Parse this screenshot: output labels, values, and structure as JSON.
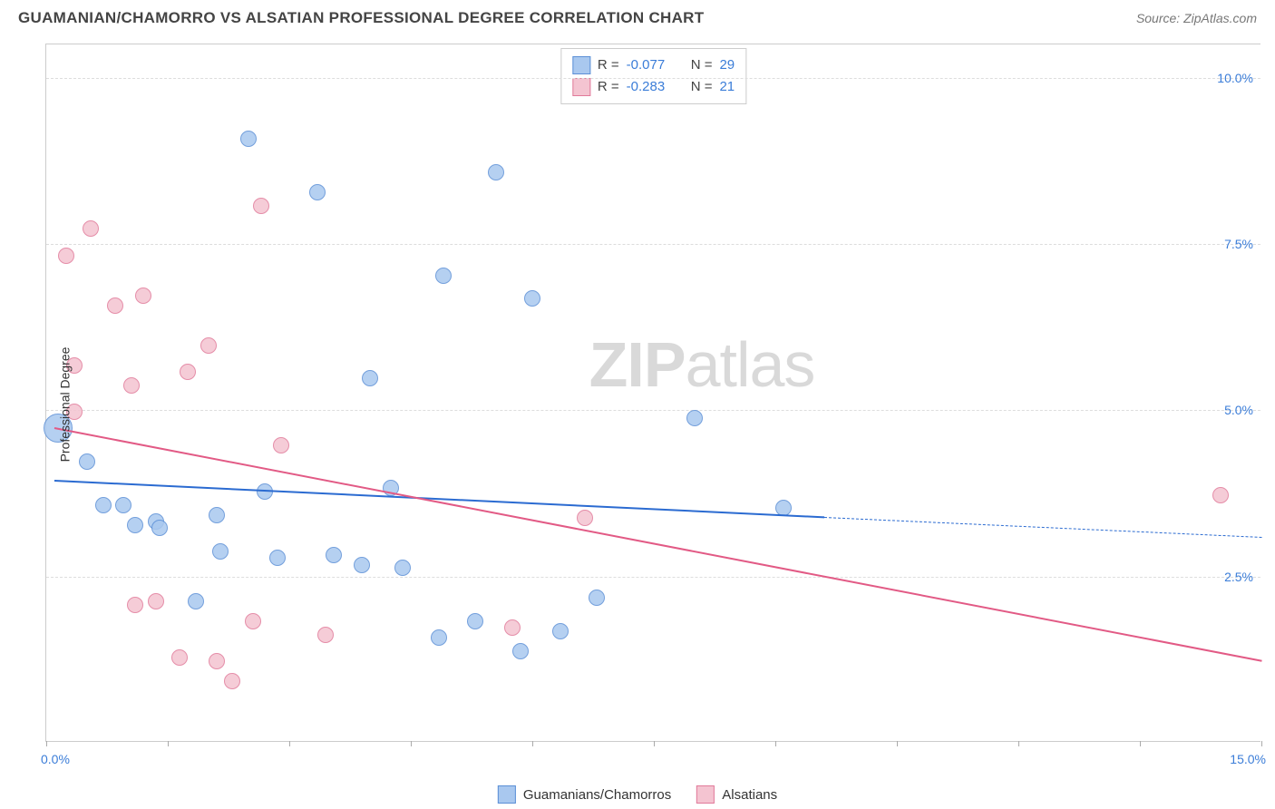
{
  "header": {
    "title": "GUAMANIAN/CHAMORRO VS ALSATIAN PROFESSIONAL DEGREE CORRELATION CHART",
    "source": "Source: ZipAtlas.com"
  },
  "chart": {
    "type": "scatter",
    "ylabel": "Professional Degree",
    "xlim": [
      0,
      15
    ],
    "ylim": [
      0,
      10.5
    ],
    "xtick_step": 1.5,
    "ytick_step": 2.5,
    "xaxis_labels": {
      "left": "0.0%",
      "right": "15.0%"
    },
    "ytick_labels": [
      "2.5%",
      "5.0%",
      "7.5%",
      "10.0%"
    ],
    "ytick_values": [
      2.5,
      5.0,
      7.5,
      10.0
    ],
    "grid_color": "#dddddd",
    "axis_color": "#cccccc",
    "label_color": "#3b7dd8",
    "background_color": "#ffffff",
    "watermark": {
      "bold": "ZIP",
      "rest": "atlas"
    },
    "series": [
      {
        "name": "Guamanians/Chamorros",
        "fill": "#a9c8ef",
        "stroke": "#5b8fd6",
        "marker_radius": 9,
        "trend": {
          "x1": 0.1,
          "y1": 3.95,
          "x2": 9.6,
          "y2": 3.4,
          "dash_from_x": 9.6,
          "dash_to_x": 15.0,
          "dash_to_y": 3.1,
          "color": "#2b6bd1",
          "width": 2.5
        },
        "stats": {
          "R_label": "R =",
          "R": "-0.077",
          "N_label": "N =",
          "N": "29"
        },
        "points": [
          {
            "x": 0.15,
            "y": 4.7,
            "r": 16
          },
          {
            "x": 0.5,
            "y": 4.2
          },
          {
            "x": 0.7,
            "y": 3.55
          },
          {
            "x": 0.95,
            "y": 3.55
          },
          {
            "x": 1.1,
            "y": 3.25
          },
          {
            "x": 1.35,
            "y": 3.3
          },
          {
            "x": 1.4,
            "y": 3.2
          },
          {
            "x": 1.85,
            "y": 2.1
          },
          {
            "x": 2.1,
            "y": 3.4
          },
          {
            "x": 2.15,
            "y": 2.85
          },
          {
            "x": 2.5,
            "y": 9.05
          },
          {
            "x": 2.7,
            "y": 3.75
          },
          {
            "x": 2.85,
            "y": 2.75
          },
          {
            "x": 3.35,
            "y": 8.25
          },
          {
            "x": 3.55,
            "y": 2.8
          },
          {
            "x": 3.9,
            "y": 2.65
          },
          {
            "x": 4.0,
            "y": 5.45
          },
          {
            "x": 4.25,
            "y": 3.8
          },
          {
            "x": 4.4,
            "y": 2.6
          },
          {
            "x": 4.85,
            "y": 1.55
          },
          {
            "x": 4.9,
            "y": 7.0
          },
          {
            "x": 5.3,
            "y": 1.8
          },
          {
            "x": 5.55,
            "y": 8.55
          },
          {
            "x": 5.85,
            "y": 1.35
          },
          {
            "x": 6.0,
            "y": 6.65
          },
          {
            "x": 6.35,
            "y": 1.65
          },
          {
            "x": 6.8,
            "y": 2.15
          },
          {
            "x": 8.0,
            "y": 4.85
          },
          {
            "x": 9.1,
            "y": 3.5
          }
        ]
      },
      {
        "name": "Alsatians",
        "fill": "#f4c4d1",
        "stroke": "#e17a9a",
        "marker_radius": 9,
        "trend": {
          "x1": 0.1,
          "y1": 4.75,
          "x2": 15.0,
          "y2": 1.25,
          "color": "#e25a85",
          "width": 2.5
        },
        "stats": {
          "R_label": "R =",
          "R": "-0.283",
          "N_label": "N =",
          "N": "21"
        },
        "points": [
          {
            "x": 0.25,
            "y": 7.3
          },
          {
            "x": 0.35,
            "y": 5.65
          },
          {
            "x": 0.35,
            "y": 4.95
          },
          {
            "x": 0.55,
            "y": 7.7
          },
          {
            "x": 0.85,
            "y": 6.55
          },
          {
            "x": 1.05,
            "y": 5.35
          },
          {
            "x": 1.1,
            "y": 2.05
          },
          {
            "x": 1.2,
            "y": 6.7
          },
          {
            "x": 1.35,
            "y": 2.1
          },
          {
            "x": 1.65,
            "y": 1.25
          },
          {
            "x": 1.75,
            "y": 5.55
          },
          {
            "x": 2.0,
            "y": 5.95
          },
          {
            "x": 2.1,
            "y": 1.2
          },
          {
            "x": 2.3,
            "y": 0.9
          },
          {
            "x": 2.55,
            "y": 1.8
          },
          {
            "x": 2.65,
            "y": 8.05
          },
          {
            "x": 2.9,
            "y": 4.45
          },
          {
            "x": 3.45,
            "y": 1.6
          },
          {
            "x": 5.75,
            "y": 1.7
          },
          {
            "x": 6.65,
            "y": 3.35
          },
          {
            "x": 14.5,
            "y": 3.7
          }
        ]
      }
    ]
  },
  "bottom_legend": [
    {
      "label": "Guamanians/Chamorros",
      "fill": "#a9c8ef",
      "stroke": "#5b8fd6"
    },
    {
      "label": "Alsatians",
      "fill": "#f4c4d1",
      "stroke": "#e17a9a"
    }
  ]
}
